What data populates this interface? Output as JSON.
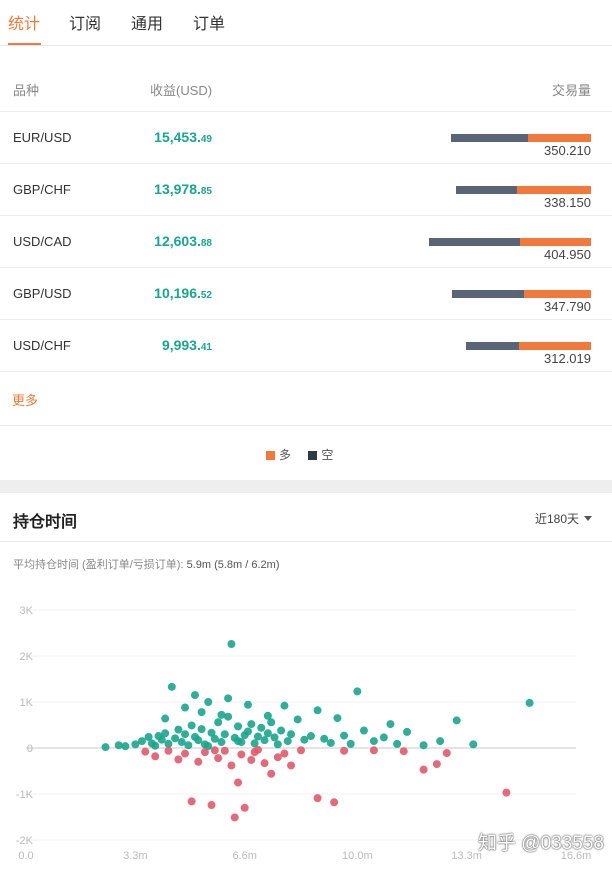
{
  "tabs": [
    {
      "label": "统计",
      "active": true
    },
    {
      "label": "订阅",
      "active": false
    },
    {
      "label": "通用",
      "active": false
    },
    {
      "label": "订单",
      "active": false
    }
  ],
  "table": {
    "headers": {
      "symbol": "品种",
      "profit": "收益(USD)",
      "volume": "交易量"
    },
    "rows": [
      {
        "symbol": "EUR/USD",
        "profit_int": "15,453.",
        "profit_dec": "49",
        "volume": "350.210",
        "short_share": 0.55,
        "long_share": 0.45
      },
      {
        "symbol": "GBP/CHF",
        "profit_int": "13,978.",
        "profit_dec": "85",
        "volume": "338.150",
        "short_share": 0.45,
        "long_share": 0.55
      },
      {
        "symbol": "USD/CAD",
        "profit_int": "12,603.",
        "profit_dec": "88",
        "volume": "404.950",
        "short_share": 0.56,
        "long_share": 0.44
      },
      {
        "symbol": "GBP/USD",
        "profit_int": "10,196.",
        "profit_dec": "52",
        "volume": "347.790",
        "short_share": 0.52,
        "long_share": 0.48
      },
      {
        "symbol": "USD/CHF",
        "profit_int": "9,993.",
        "profit_dec": "41",
        "volume": "312.019",
        "short_share": 0.42,
        "long_share": 0.58
      }
    ],
    "more_label": "更多"
  },
  "legend": [
    {
      "label": "多",
      "color": "#f07a3c"
    },
    {
      "label": "空",
      "color": "#2e3a48"
    }
  ],
  "colors": {
    "accent": "#f07a3c",
    "profit": "#1aa58d",
    "short": "#5a6477",
    "long": "#f07a3c",
    "loss_point": "#e05a6b"
  },
  "holding": {
    "title": "持仓时间",
    "period": "近180天",
    "avg_label": "平均持仓时间 (盈利订单/亏损订单):",
    "avg_value": "5.9m (5.8m / 6.2m)"
  },
  "chart_data": {
    "type": "scatter",
    "title": "",
    "xlabel": "",
    "ylabel": "",
    "xlim": [
      0,
      16.6
    ],
    "ylim": [
      -2000,
      3000
    ],
    "x_ticks": [
      "0.0",
      "3.3m",
      "6.6m",
      "10.0m",
      "13.3m",
      "16.6m"
    ],
    "x_tick_values": [
      0,
      3.3,
      6.6,
      10.0,
      13.3,
      16.6
    ],
    "y_ticks": [
      "3K",
      "2K",
      "1K",
      "0",
      "-1K",
      "-2K"
    ],
    "y_tick_values": [
      3000,
      2000,
      1000,
      0,
      -1000,
      -2000
    ],
    "grid": true,
    "series": [
      {
        "color": "#1aa58d",
        "points": [
          [
            2.4,
            20
          ],
          [
            2.8,
            60
          ],
          [
            3.0,
            40
          ],
          [
            3.3,
            80
          ],
          [
            3.5,
            150
          ],
          [
            3.7,
            240
          ],
          [
            3.8,
            100
          ],
          [
            3.9,
            50
          ],
          [
            4.0,
            260
          ],
          [
            4.1,
            180
          ],
          [
            4.2,
            320
          ],
          [
            4.3,
            90
          ],
          [
            4.4,
            1330
          ],
          [
            4.5,
            210
          ],
          [
            4.6,
            400
          ],
          [
            4.7,
            130
          ],
          [
            4.8,
            300
          ],
          [
            4.9,
            60
          ],
          [
            5.0,
            490
          ],
          [
            5.1,
            240
          ],
          [
            5.2,
            170
          ],
          [
            5.3,
            410
          ],
          [
            5.4,
            80
          ],
          [
            5.5,
            1000
          ],
          [
            5.6,
            330
          ],
          [
            5.7,
            200
          ],
          [
            5.8,
            560
          ],
          [
            5.9,
            130
          ],
          [
            6.0,
            300
          ],
          [
            6.1,
            680
          ],
          [
            6.2,
            2260
          ],
          [
            6.3,
            220
          ],
          [
            6.4,
            470
          ],
          [
            6.5,
            130
          ],
          [
            6.6,
            280
          ],
          [
            6.7,
            360
          ],
          [
            6.8,
            520
          ],
          [
            6.9,
            100
          ],
          [
            7.0,
            250
          ],
          [
            7.1,
            440
          ],
          [
            7.2,
            170
          ],
          [
            7.3,
            320
          ],
          [
            7.4,
            560
          ],
          [
            7.5,
            230
          ],
          [
            7.6,
            80
          ],
          [
            7.7,
            380
          ],
          [
            7.8,
            920
          ],
          [
            7.9,
            150
          ],
          [
            8.0,
            300
          ],
          [
            8.2,
            620
          ],
          [
            8.4,
            180
          ],
          [
            8.6,
            260
          ],
          [
            8.8,
            820
          ],
          [
            9.0,
            200
          ],
          [
            9.2,
            110
          ],
          [
            9.4,
            650
          ],
          [
            9.6,
            270
          ],
          [
            9.8,
            90
          ],
          [
            10.0,
            1230
          ],
          [
            10.2,
            380
          ],
          [
            10.5,
            150
          ],
          [
            10.8,
            230
          ],
          [
            11.0,
            520
          ],
          [
            11.2,
            90
          ],
          [
            11.5,
            350
          ],
          [
            12.0,
            60
          ],
          [
            12.5,
            150
          ],
          [
            13.0,
            600
          ],
          [
            13.5,
            80
          ],
          [
            15.2,
            980
          ],
          [
            5.1,
            1150
          ],
          [
            5.3,
            780
          ],
          [
            6.1,
            1080
          ],
          [
            6.7,
            940
          ],
          [
            4.8,
            880
          ],
          [
            7.3,
            700
          ],
          [
            5.9,
            720
          ],
          [
            4.2,
            640
          ],
          [
            6.4,
            150
          ],
          [
            5.5,
            40
          ]
        ]
      },
      {
        "color": "#e05a6b",
        "points": [
          [
            3.6,
            -80
          ],
          [
            3.9,
            -180
          ],
          [
            4.3,
            -60
          ],
          [
            4.6,
            -250
          ],
          [
            4.8,
            -120
          ],
          [
            5.0,
            -1160
          ],
          [
            5.2,
            -300
          ],
          [
            5.4,
            -90
          ],
          [
            5.6,
            -1240
          ],
          [
            5.8,
            -220
          ],
          [
            6.0,
            -60
          ],
          [
            6.2,
            -380
          ],
          [
            6.3,
            -1510
          ],
          [
            6.4,
            -750
          ],
          [
            6.5,
            -140
          ],
          [
            6.6,
            -1300
          ],
          [
            6.8,
            -260
          ],
          [
            7.0,
            -40
          ],
          [
            7.2,
            -330
          ],
          [
            7.4,
            -560
          ],
          [
            7.6,
            -200
          ],
          [
            7.8,
            -120
          ],
          [
            8.0,
            -380
          ],
          [
            8.3,
            -50
          ],
          [
            8.8,
            -1090
          ],
          [
            9.3,
            -1180
          ],
          [
            9.6,
            -60
          ],
          [
            10.5,
            -50
          ],
          [
            11.4,
            -70
          ],
          [
            12.0,
            -470
          ],
          [
            12.4,
            -350
          ],
          [
            12.7,
            -110
          ],
          [
            14.5,
            -970
          ],
          [
            5.7,
            -50
          ],
          [
            6.9,
            -90
          ]
        ]
      }
    ]
  },
  "watermark": "知乎 @033558"
}
